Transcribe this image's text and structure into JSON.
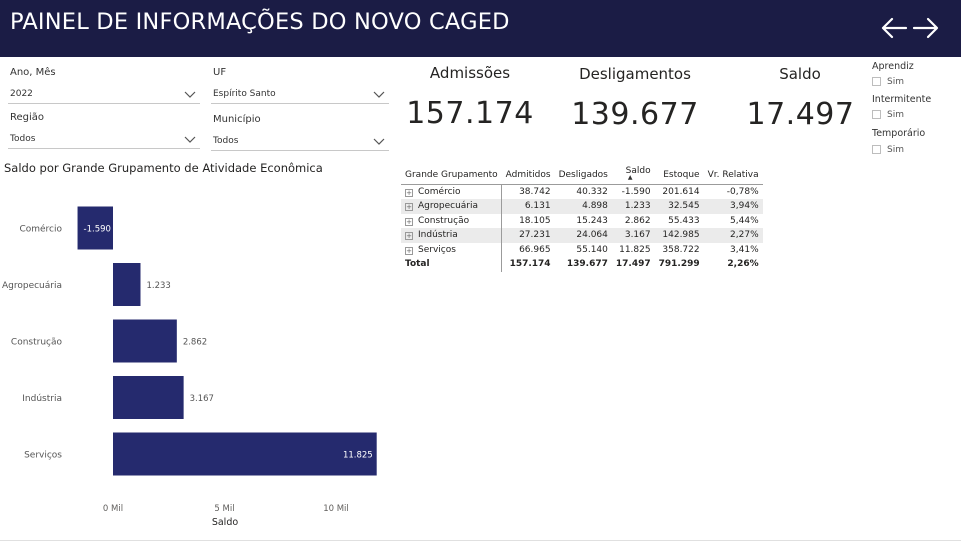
{
  "header": {
    "title": "PAINEL DE INFORMAÇÕES DO NOVO CAGED",
    "back_icon": "arrow-left-icon",
    "forward_icon": "arrow-right-icon"
  },
  "filters": {
    "ano_mes": {
      "label": "Ano, Mês",
      "value": "2022"
    },
    "uf": {
      "label": "UF",
      "value": "Espírito Santo"
    },
    "regiao": {
      "label": "Região",
      "value": "Todos"
    },
    "municipio": {
      "label": "Município",
      "value": "Todos"
    }
  },
  "kpis": {
    "admissoes": {
      "label": "Admissões",
      "value": "157.174"
    },
    "desligamentos": {
      "label": "Desligamentos",
      "value": "139.677"
    },
    "saldo": {
      "label": "Saldo",
      "value": "17.497"
    }
  },
  "slicers": {
    "aprendiz": {
      "title": "Aprendiz",
      "option": "Sim"
    },
    "intermitente": {
      "title": "Intermitente",
      "option": "Sim"
    },
    "temporario": {
      "title": "Temporário",
      "option": "Sim"
    }
  },
  "chart": {
    "title": "Saldo por Grande Grupamento de Atividade Econômica"
  },
  "chart_data": {
    "type": "bar",
    "orientation": "horizontal",
    "title": "Saldo por Grande Grupamento de Atividade Econômica",
    "categories": [
      "Comércio",
      "Agropecuária",
      "Construção",
      "Indústria",
      "Serviços"
    ],
    "values": [
      -1590,
      1233,
      2862,
      3167,
      11825
    ],
    "value_labels": [
      "-1.590",
      "1.233",
      "2.862",
      "3.167",
      "11.825"
    ],
    "xlabel": "Saldo",
    "ylabel": "",
    "xlim": [
      -1590,
      11825
    ],
    "x_ticks": [
      0,
      5000,
      10000
    ],
    "x_tick_labels": [
      "0 Mil",
      "5 Mil",
      "10 Mil"
    ],
    "grid": false,
    "bar_color": "#252a6e"
  },
  "table": {
    "headers": [
      "Grande Grupamento",
      "Admitidos",
      "Desligados",
      "Saldo",
      "Estoque",
      "Vr. Relativa"
    ],
    "sort_indicator": "▲",
    "rows": [
      [
        "Comércio",
        "38.742",
        "40.332",
        "-1.590",
        "201.614",
        "-0,78%"
      ],
      [
        "Agropecuária",
        "6.131",
        "4.898",
        "1.233",
        "32.545",
        "3,94%"
      ],
      [
        "Construção",
        "18.105",
        "15.243",
        "2.862",
        "55.433",
        "5,44%"
      ],
      [
        "Indústria",
        "27.231",
        "24.064",
        "3.167",
        "142.985",
        "2,27%"
      ],
      [
        "Serviços",
        "66.965",
        "55.140",
        "11.825",
        "358.722",
        "3,41%"
      ]
    ],
    "total": [
      "Total",
      "157.174",
      "139.677",
      "17.497",
      "791.299",
      "2,26%"
    ]
  },
  "colors": {
    "header_bg": "#1b1c45",
    "bar": "#252a6e"
  }
}
